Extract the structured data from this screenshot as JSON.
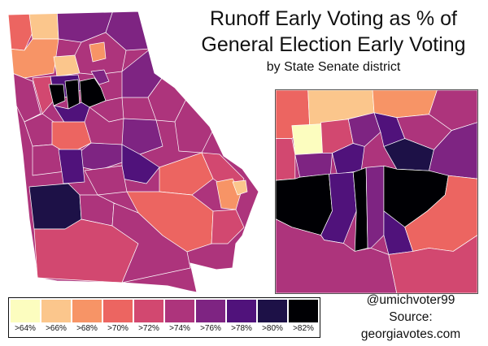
{
  "title_line1": "Runoff Early Voting as % of",
  "title_line2": "General Election Early Voting",
  "subtitle": "by State Senate district",
  "credits": {
    "handle": "@umichvoter99",
    "source": "Source:",
    "site": "georgiavotes.com"
  },
  "legend": [
    {
      "label": ">64%",
      "color": "#fcfdbf"
    },
    {
      "label": ">66%",
      "color": "#fbc68c"
    },
    {
      "label": ">68%",
      "color": "#f79466"
    },
    {
      "label": ">70%",
      "color": "#ec6561"
    },
    {
      "label": ">72%",
      "color": "#d24870"
    },
    {
      "label": ">74%",
      "color": "#ad347c"
    },
    {
      "label": ">76%",
      "color": "#7e2482"
    },
    {
      "label": ">78%",
      "color": "#50127b"
    },
    {
      "label": ">80%",
      "color": "#1d1147"
    },
    {
      "label": ">82%",
      "color": "#000004"
    }
  ]
}
